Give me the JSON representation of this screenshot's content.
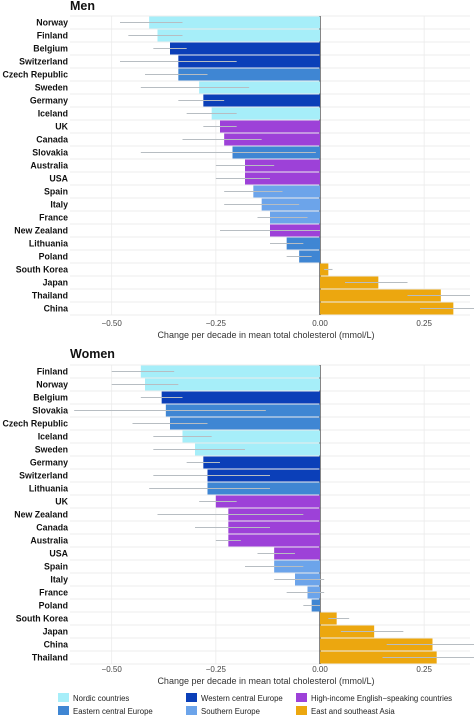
{
  "chart_data": [
    {
      "type": "bar",
      "title": "Men",
      "xlabel": "Change per decade in mean total cholesterol (mmol/L)",
      "xlim": [
        -0.6,
        0.36
      ],
      "xticks": [
        -0.5,
        -0.25,
        0.0,
        0.25
      ],
      "xtick_labels": [
        "−0.50",
        "−0.25",
        "0.00",
        "0.25"
      ],
      "grid": true,
      "categories": [
        "Norway",
        "Finland",
        "Belgium",
        "Switzerland",
        "Czech Republic",
        "Sweden",
        "Germany",
        "Iceland",
        "UK",
        "Canada",
        "Slovakia",
        "Australia",
        "USA",
        "Spain",
        "Italy",
        "France",
        "New Zealand",
        "Lithuania",
        "Poland",
        "South Korea",
        "Japan",
        "Thailand",
        "China"
      ],
      "values": [
        -0.41,
        -0.39,
        -0.36,
        -0.34,
        -0.34,
        -0.29,
        -0.28,
        -0.26,
        -0.24,
        -0.23,
        -0.21,
        -0.18,
        -0.18,
        -0.16,
        -0.14,
        -0.12,
        -0.12,
        -0.08,
        -0.05,
        0.02,
        0.14,
        0.29,
        0.32
      ],
      "ci_low": [
        -0.48,
        -0.46,
        -0.4,
        -0.48,
        -0.42,
        -0.43,
        -0.34,
        -0.32,
        -0.28,
        -0.33,
        -0.43,
        -0.25,
        -0.25,
        -0.23,
        -0.23,
        -0.15,
        -0.24,
        -0.12,
        -0.08,
        0.01,
        0.06,
        0.21,
        0.24
      ],
      "ci_high": [
        -0.33,
        -0.33,
        -0.32,
        -0.2,
        -0.27,
        -0.17,
        -0.23,
        -0.2,
        -0.2,
        -0.14,
        -0.01,
        -0.11,
        -0.12,
        -0.09,
        -0.05,
        -0.03,
        0.0,
        -0.04,
        -0.02,
        0.03,
        0.21,
        0.36,
        0.41
      ],
      "groups": [
        "Nordic countries",
        "Nordic countries",
        "Western central Europe",
        "Western central Europe",
        "Eastern central Europe",
        "Nordic countries",
        "Western central Europe",
        "Nordic countries",
        "High-income English-speaking countries",
        "High-income English-speaking countries",
        "Eastern central Europe",
        "High-income English-speaking countries",
        "High-income English-speaking countries",
        "Southern Europe",
        "Southern Europe",
        "Southern Europe",
        "High-income English-speaking countries",
        "Eastern central Europe",
        "Eastern central Europe",
        "East and southeast Asia",
        "East and southeast Asia",
        "East and southeast Asia",
        "East and southeast Asia"
      ]
    },
    {
      "type": "bar",
      "title": "Women",
      "xlabel": "Change per decade in mean total cholesterol (mmol/L)",
      "xlim": [
        -0.6,
        0.36
      ],
      "xticks": [
        -0.5,
        -0.25,
        0.0,
        0.25
      ],
      "xtick_labels": [
        "−0.50",
        "−0.25",
        "0.00",
        "0.25"
      ],
      "grid": true,
      "categories": [
        "Finland",
        "Norway",
        "Belgium",
        "Slovakia",
        "Czech Republic",
        "Iceland",
        "Sweden",
        "Germany",
        "Switzerland",
        "Lithuania",
        "UK",
        "New Zealand",
        "Canada",
        "Australia",
        "USA",
        "Spain",
        "Italy",
        "France",
        "Poland",
        "South Korea",
        "Japan",
        "China",
        "Thailand"
      ],
      "values": [
        -0.43,
        -0.42,
        -0.38,
        -0.37,
        -0.36,
        -0.33,
        -0.3,
        -0.28,
        -0.27,
        -0.27,
        -0.25,
        -0.22,
        -0.22,
        -0.22,
        -0.11,
        -0.11,
        -0.06,
        -0.03,
        -0.02,
        0.04,
        0.13,
        0.27,
        0.28
      ],
      "ci_low": [
        -0.5,
        -0.5,
        -0.43,
        -0.59,
        -0.45,
        -0.4,
        -0.4,
        -0.32,
        -0.4,
        -0.41,
        -0.29,
        -0.39,
        -0.3,
        -0.25,
        -0.15,
        -0.18,
        -0.11,
        -0.08,
        -0.04,
        0.02,
        0.05,
        0.16,
        0.15
      ],
      "ci_high": [
        -0.35,
        -0.34,
        -0.33,
        -0.13,
        -0.27,
        -0.26,
        -0.18,
        -0.24,
        -0.12,
        -0.12,
        -0.2,
        -0.04,
        -0.12,
        -0.19,
        -0.06,
        -0.04,
        0.01,
        0.01,
        0.0,
        0.07,
        0.2,
        0.37,
        0.41
      ],
      "groups": [
        "Nordic countries",
        "Nordic countries",
        "Western central Europe",
        "Eastern central Europe",
        "Eastern central Europe",
        "Nordic countries",
        "Nordic countries",
        "Western central Europe",
        "Western central Europe",
        "Eastern central Europe",
        "High-income English-speaking countries",
        "High-income English-speaking countries",
        "High-income English-speaking countries",
        "High-income English-speaking countries",
        "High-income English-speaking countries",
        "Southern Europe",
        "Southern Europe",
        "Southern Europe",
        "Eastern central Europe",
        "East and southeast Asia",
        "East and southeast Asia",
        "East and southeast Asia",
        "East and southeast Asia"
      ]
    }
  ],
  "legend": [
    {
      "label": "Nordic countries",
      "color": "#a6eef9"
    },
    {
      "label": "Eastern central Europe",
      "color": "#3f86d3"
    },
    {
      "label": "Western central Europe",
      "color": "#0b3fb8"
    },
    {
      "label": "Southern Europe",
      "color": "#6ca4ea"
    },
    {
      "label": "High-income English−speaking countries",
      "color": "#9d41d8"
    },
    {
      "label": "East and southeast Asia",
      "color": "#eca70f"
    }
  ],
  "legend_placement": "bottom",
  "errorbar_color": "#b7bdc2"
}
